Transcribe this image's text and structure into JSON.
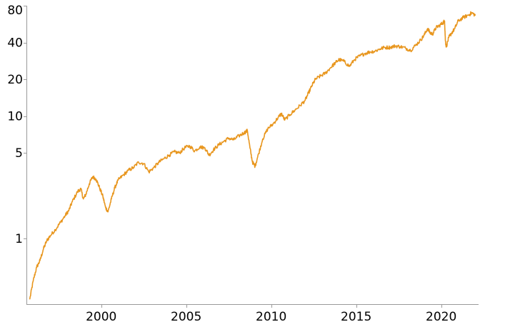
{
  "chart_data": {
    "type": "line",
    "title": "",
    "xlabel": "",
    "ylabel": "",
    "x_scale": "time",
    "y_scale": "log",
    "xlim": [
      1995.6,
      2022.2
    ],
    "ylim": [
      0.29,
      80
    ],
    "grid": false,
    "legend": "none",
    "x_ticks": [
      2000,
      2005,
      2010,
      2015,
      2020
    ],
    "x_tick_labels": [
      "2000",
      "2005",
      "2010",
      "2015",
      "2020"
    ],
    "y_ticks": [
      1,
      5,
      10,
      20,
      40,
      80
    ],
    "y_tick_labels": [
      "1",
      "5",
      "10",
      "20",
      "40",
      "80"
    ],
    "series": [
      {
        "color": "#E8961E",
        "points": [
          [
            1995.8,
            0.32
          ],
          [
            1996.0,
            0.45
          ],
          [
            1996.2,
            0.58
          ],
          [
            1996.4,
            0.66
          ],
          [
            1996.6,
            0.82
          ],
          [
            1996.8,
            0.96
          ],
          [
            1997.0,
            1.05
          ],
          [
            1997.3,
            1.18
          ],
          [
            1997.6,
            1.35
          ],
          [
            1997.9,
            1.55
          ],
          [
            1998.1,
            1.7
          ],
          [
            1998.3,
            2.0
          ],
          [
            1998.6,
            2.4
          ],
          [
            1998.8,
            2.55
          ],
          [
            1998.95,
            2.1
          ],
          [
            1999.1,
            2.3
          ],
          [
            1999.3,
            2.8
          ],
          [
            1999.5,
            3.2
          ],
          [
            1999.7,
            3.05
          ],
          [
            1999.9,
            2.6
          ],
          [
            2000.1,
            2.2
          ],
          [
            2000.25,
            1.8
          ],
          [
            2000.4,
            1.65
          ],
          [
            2000.6,
            2.1
          ],
          [
            2000.8,
            2.6
          ],
          [
            2001.0,
            3.0
          ],
          [
            2001.3,
            3.3
          ],
          [
            2001.6,
            3.6
          ],
          [
            2001.9,
            3.8
          ],
          [
            2002.2,
            4.2
          ],
          [
            2002.5,
            4.1
          ],
          [
            2002.8,
            3.5
          ],
          [
            2003.1,
            3.8
          ],
          [
            2003.4,
            4.2
          ],
          [
            2003.7,
            4.5
          ],
          [
            2004.0,
            4.8
          ],
          [
            2004.3,
            5.1
          ],
          [
            2004.6,
            5.0
          ],
          [
            2004.9,
            5.5
          ],
          [
            2005.2,
            5.7
          ],
          [
            2005.5,
            5.2
          ],
          [
            2005.8,
            5.6
          ],
          [
            2006.1,
            5.5
          ],
          [
            2006.35,
            4.8
          ],
          [
            2006.6,
            5.3
          ],
          [
            2006.9,
            5.8
          ],
          [
            2007.2,
            6.2
          ],
          [
            2007.5,
            6.6
          ],
          [
            2007.8,
            6.4
          ],
          [
            2008.1,
            6.9
          ],
          [
            2008.4,
            7.3
          ],
          [
            2008.6,
            7.6
          ],
          [
            2008.75,
            5.5
          ],
          [
            2008.9,
            4.2
          ],
          [
            2009.05,
            3.9
          ],
          [
            2009.2,
            4.6
          ],
          [
            2009.5,
            6.5
          ],
          [
            2009.8,
            7.9
          ],
          [
            2010.1,
            8.6
          ],
          [
            2010.4,
            9.7
          ],
          [
            2010.6,
            10.5
          ],
          [
            2010.8,
            9.3
          ],
          [
            2011.1,
            10.3
          ],
          [
            2011.4,
            11.2
          ],
          [
            2011.7,
            12.2
          ],
          [
            2012.0,
            13.5
          ],
          [
            2012.2,
            15.5
          ],
          [
            2012.4,
            17.8
          ],
          [
            2012.6,
            20.0
          ],
          [
            2012.9,
            21.3
          ],
          [
            2013.2,
            22.5
          ],
          [
            2013.5,
            25.0
          ],
          [
            2013.8,
            27.5
          ],
          [
            2014.0,
            29.0
          ],
          [
            2014.3,
            28.0
          ],
          [
            2014.6,
            25.5
          ],
          [
            2014.9,
            29.0
          ],
          [
            2015.2,
            31.0
          ],
          [
            2015.5,
            32.5
          ],
          [
            2015.8,
            33.5
          ],
          [
            2016.1,
            34.0
          ],
          [
            2016.4,
            35.5
          ],
          [
            2016.7,
            36.5
          ],
          [
            2017.0,
            36.5
          ],
          [
            2017.3,
            37.5
          ],
          [
            2017.6,
            37.0
          ],
          [
            2017.9,
            36.0
          ],
          [
            2018.2,
            34.5
          ],
          [
            2018.5,
            38.0
          ],
          [
            2018.8,
            42.0
          ],
          [
            2019.0,
            46.0
          ],
          [
            2019.2,
            52.0
          ],
          [
            2019.35,
            48.0
          ],
          [
            2019.5,
            47.0
          ],
          [
            2019.7,
            53.0
          ],
          [
            2019.9,
            55.0
          ],
          [
            2020.1,
            58.0
          ],
          [
            2020.2,
            60.0
          ],
          [
            2020.25,
            41.0
          ],
          [
            2020.3,
            37.0
          ],
          [
            2020.45,
            44.0
          ],
          [
            2020.6,
            47.5
          ],
          [
            2020.8,
            52.0
          ],
          [
            2021.0,
            60.0
          ],
          [
            2021.3,
            64.0
          ],
          [
            2021.6,
            67.0
          ],
          [
            2021.8,
            70.0
          ],
          [
            2022.0,
            67.0
          ]
        ]
      }
    ]
  }
}
